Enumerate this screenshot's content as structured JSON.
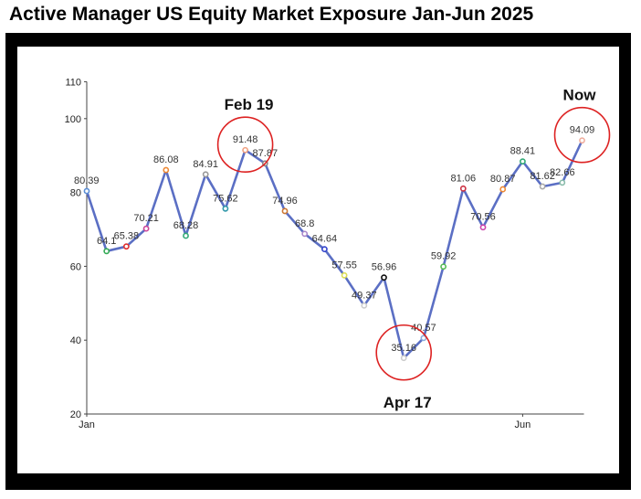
{
  "title": "Active Manager US Equity Market Exposure Jan-Jun 2025",
  "chart_data": {
    "type": "line",
    "title": "Active Manager US Equity Market Exposure Jan-Jun 2025",
    "xlabel": "",
    "ylabel": "",
    "ylim": [
      20,
      110
    ],
    "yticks": [
      20,
      40,
      60,
      80,
      100,
      110
    ],
    "xtick_labels": [
      {
        "label": "Jan",
        "index": 0
      },
      {
        "label": "Jun",
        "index": 22
      }
    ],
    "grid": false,
    "series": [
      {
        "color": "#5b6fc4",
        "values": [
          80.39,
          64.1,
          65.38,
          70.21,
          86.08,
          68.28,
          84.91,
          75.62,
          91.48,
          87.87,
          74.96,
          68.8,
          64.64,
          57.55,
          49.37,
          56.96,
          35.16,
          40.57,
          59.92,
          81.06,
          70.56,
          80.87,
          88.41,
          81.62,
          82.66,
          94.09
        ],
        "labels": [
          "80.39",
          "64.1",
          "65.38",
          "70.21",
          "86.08",
          "68.28",
          "84.91",
          "75.62",
          "91.48",
          "87.87",
          "74.96",
          "68.8",
          "64.64",
          "57.55",
          "49.37",
          "56.96",
          "35.16",
          "40.57",
          "59.92",
          "81.06",
          "70.56",
          "80.87",
          "88.41",
          "81.62",
          "82.66",
          "94.09"
        ],
        "marker_colors": [
          "#5b8fd6",
          "#33aa55",
          "#e03030",
          "#cc4499",
          "#ee8833",
          "#33aa77",
          "#999999",
          "#3399aa",
          "#f0a080",
          "#888888",
          "#cc7733",
          "#aa88cc",
          "#3344cc",
          "#dddd55",
          "#cccccc",
          "#111111",
          "#cccccc",
          "#88aadd",
          "#55bb55",
          "#cc3344",
          "#cc44aa",
          "#ee8833",
          "#33aa77",
          "#aaaaaa",
          "#88bbaa",
          "#f0b0a0"
        ]
      }
    ],
    "annotations": [
      {
        "text": "Feb 19",
        "index": 8
      },
      {
        "text": "Apr 17",
        "index": 16
      },
      {
        "text": "Now",
        "index": 25
      }
    ],
    "highlight_color": "#dd2222"
  }
}
